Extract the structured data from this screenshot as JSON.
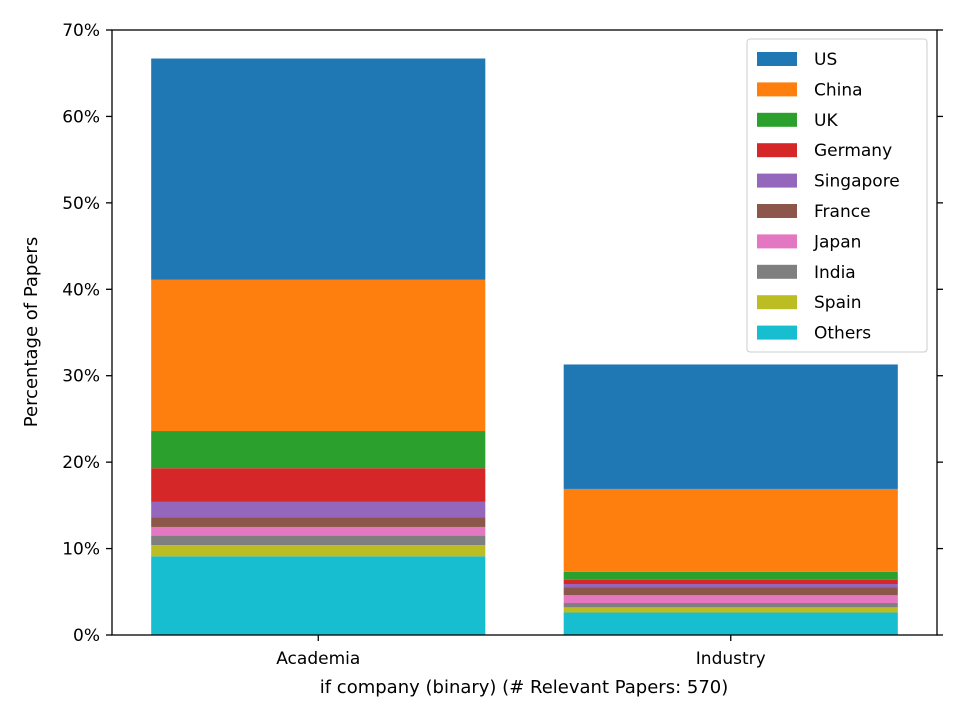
{
  "chart_data": {
    "type": "bar",
    "stacked": true,
    "categories": [
      "Academia",
      "Industry"
    ],
    "xlabel": "if company (binary) (# Relevant Papers: 570)",
    "ylabel": "Percentage of Papers",
    "ylim": [
      0,
      70
    ],
    "yticks": [
      0,
      10,
      20,
      30,
      40,
      50,
      60,
      70
    ],
    "ytick_labels": [
      "0%",
      "10%",
      "20%",
      "30%",
      "40%",
      "50%",
      "60%",
      "70%"
    ],
    "grid": false,
    "legend_position": "top-right",
    "stack_order": [
      "Others",
      "Spain",
      "India",
      "Japan",
      "France",
      "Singapore",
      "Germany",
      "UK",
      "China",
      "US"
    ],
    "series": [
      {
        "name": "US",
        "color": "#1f77b4",
        "values": [
          25.6,
          14.4
        ]
      },
      {
        "name": "China",
        "color": "#ff7f0e",
        "values": [
          17.5,
          9.6
        ]
      },
      {
        "name": "UK",
        "color": "#2ca02c",
        "values": [
          4.3,
          0.9
        ]
      },
      {
        "name": "Germany",
        "color": "#d62728",
        "values": [
          3.9,
          0.5
        ]
      },
      {
        "name": "Singapore",
        "color": "#9467bd",
        "values": [
          1.8,
          0.4
        ]
      },
      {
        "name": "France",
        "color": "#8c564b",
        "values": [
          1.1,
          0.9
        ]
      },
      {
        "name": "Japan",
        "color": "#e377c2",
        "values": [
          1.0,
          0.9
        ]
      },
      {
        "name": "India",
        "color": "#7f7f7f",
        "values": [
          1.1,
          0.5
        ]
      },
      {
        "name": "Spain",
        "color": "#bcbd22",
        "values": [
          1.3,
          0.6
        ]
      },
      {
        "name": "Others",
        "color": "#17becf",
        "values": [
          9.1,
          2.6
        ]
      }
    ]
  }
}
